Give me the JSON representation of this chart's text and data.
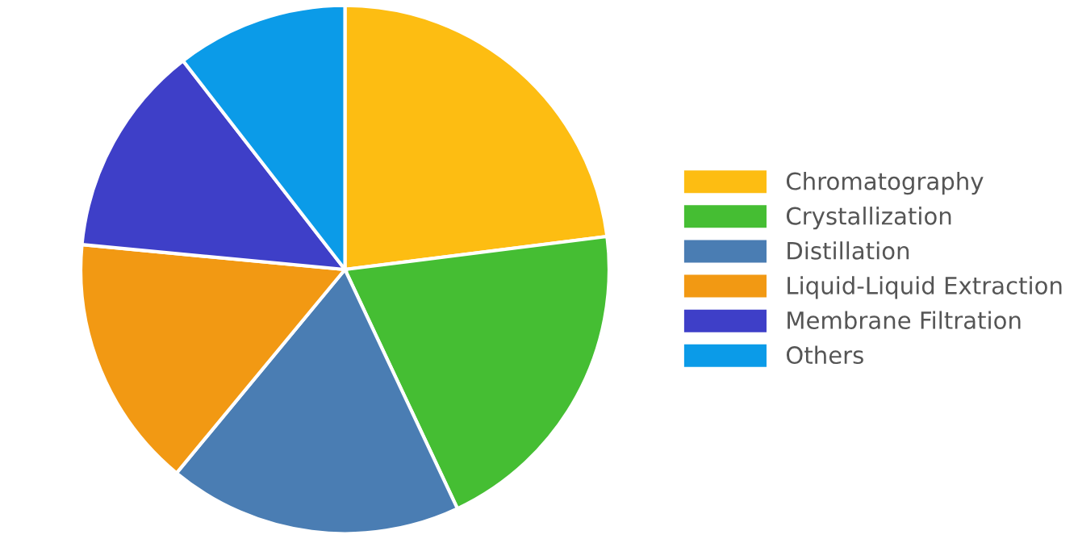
{
  "chart_data": {
    "type": "pie",
    "categories": [
      "Chromatography",
      "Crystallization",
      "Distillation",
      "Liquid-Liquid Extraction",
      "Membrane Filtration",
      "Others"
    ],
    "values": [
      23,
      20,
      18,
      15.5,
      13,
      10.5
    ],
    "colors": [
      "#fdbd12",
      "#45be33",
      "#4a7db3",
      "#f29913",
      "#3e3fc8",
      "#0b9be8"
    ],
    "legend": "right"
  }
}
